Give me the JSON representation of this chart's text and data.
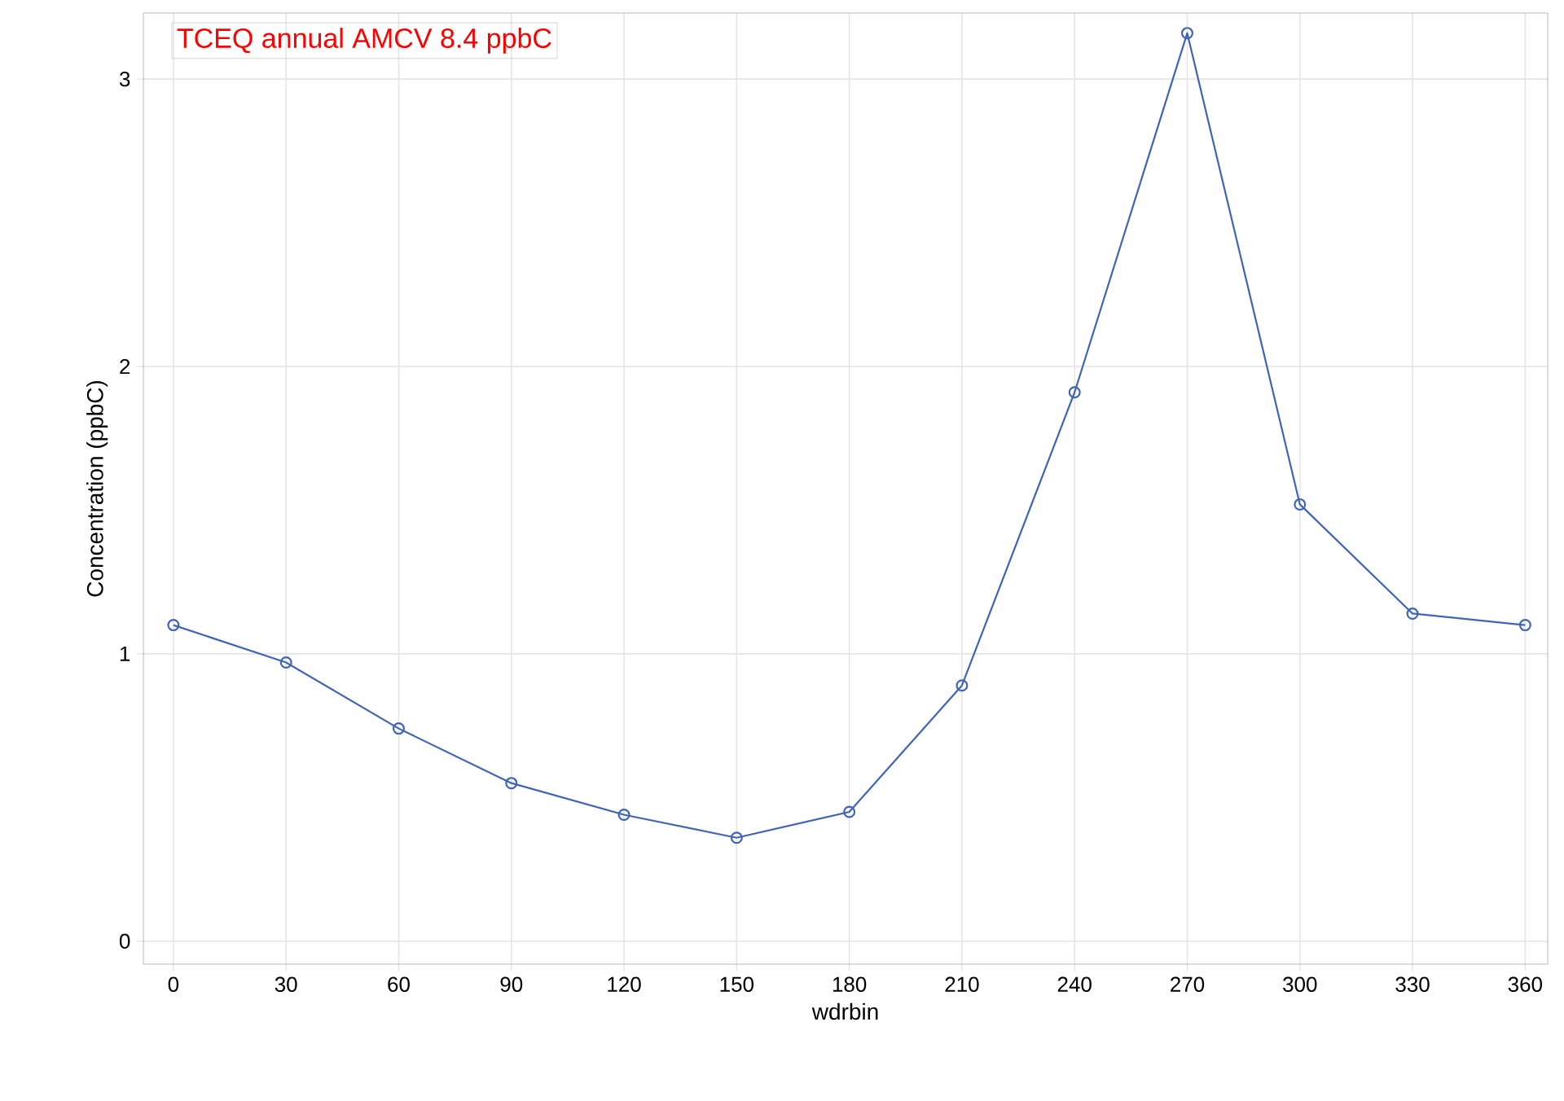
{
  "chart_data": {
    "type": "line",
    "xlabel": "wdrbin",
    "ylabel": "Concentration (ppbC)",
    "annotations": [
      "TCEQ annual AMCV  8.4 ppbC"
    ],
    "x": [
      0,
      30,
      60,
      90,
      120,
      150,
      180,
      210,
      240,
      270,
      300,
      330,
      360
    ],
    "series": [
      {
        "color": "#3f64b8",
        "values": [
          1.1,
          0.97,
          0.74,
          0.55,
          0.44,
          0.36,
          0.45,
          0.89,
          1.91,
          3.16,
          1.52,
          1.14,
          1.1
        ]
      }
    ],
    "xlim": [
      -8,
      366
    ],
    "ylim": [
      -0.08,
      3.23
    ],
    "xticks": [
      0,
      30,
      60,
      90,
      120,
      150,
      180,
      210,
      240,
      270,
      300,
      330,
      360
    ],
    "yticks": [
      0,
      1,
      2,
      3
    ],
    "grid": true,
    "marker": "circle",
    "line_style": "solid"
  }
}
